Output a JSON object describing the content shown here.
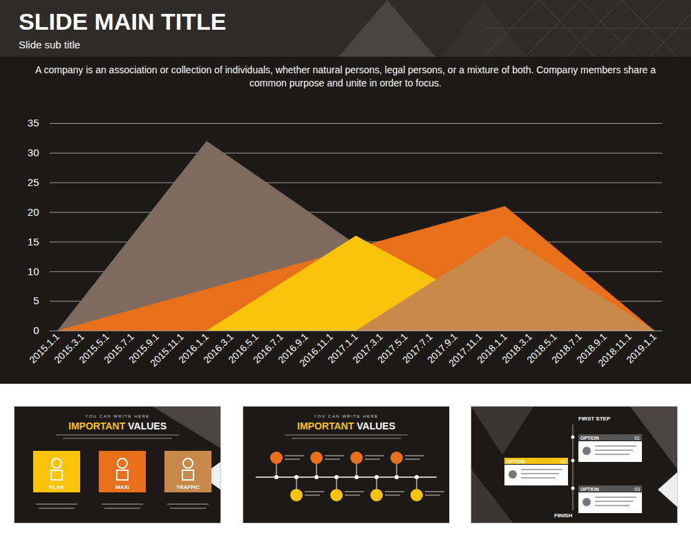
{
  "header": {
    "title": "SLIDE MAIN TITLE",
    "subtitle": "Slide sub title",
    "text": "A company is an association or collection of individuals, whether natural persons, legal persons, or a mixture of both. Company members share a common purpose and unite in order to focus."
  },
  "chart_data": {
    "type": "area",
    "categories": [
      "2015.1.1",
      "2015.3.1",
      "2015.5.1",
      "2015.7.1",
      "2015.9.1",
      "2015.11.1",
      "2016.1.1",
      "2016.3.1",
      "2016.5.1",
      "2016.7.1",
      "2016.9.1",
      "2016.11.1",
      "2017.1.1",
      "2017.3.1",
      "2017.5.1",
      "2017.7.1",
      "2017.9.1",
      "2017.11.1",
      "2018.1.1",
      "2018.3.1",
      "2018.5.1",
      "2018.7.1",
      "2018.9.1",
      "2018.11.1",
      "2019.1.1"
    ],
    "series": [
      {
        "color": "#7f6a60",
        "x": [
          "2015.1.1",
          "2016.1.1",
          "2017.11.1"
        ],
        "values": [
          0,
          32,
          0
        ]
      },
      {
        "color": "#e8701a",
        "x": [
          "2015.1.1",
          "2018.1.1",
          "2019.1.1"
        ],
        "values": [
          0,
          21,
          0
        ]
      },
      {
        "color": "#fcc30b",
        "x": [
          "2016.1.1",
          "2017.1.1",
          "2018.3.1"
        ],
        "values": [
          0,
          16,
          0
        ]
      },
      {
        "color": "#c8894a",
        "x": [
          "2017.1.1",
          "2018.1.1",
          "2019.1.1"
        ],
        "values": [
          0,
          16,
          0
        ]
      }
    ],
    "ylim": [
      0,
      35
    ],
    "yticks": [
      0,
      5,
      10,
      15,
      20,
      25,
      30,
      35
    ],
    "grid": true
  },
  "thumbnails": [
    {
      "kicker": "YOU CAN WRITE HERE",
      "title_highlight": "IMPORTANT",
      "title_rest": "VALUES",
      "boxes": [
        "PLAN",
        "MAXI",
        "TRAFFIC"
      ]
    },
    {
      "kicker": "YOU CAN WRITE HERE",
      "title_highlight": "IMPORTANT",
      "title_rest": "VALUES"
    },
    {
      "start": "FIRST STEP",
      "end": "FINISH",
      "options": [
        {
          "label": "OPTION",
          "number": "01"
        },
        {
          "label": "OPTION",
          "number": "02"
        },
        {
          "label": "OPTION",
          "number": "03"
        }
      ]
    }
  ]
}
